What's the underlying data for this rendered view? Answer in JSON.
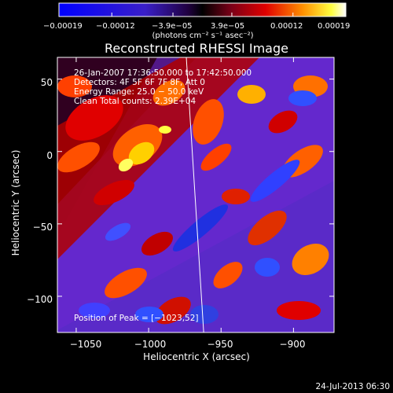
{
  "chart_data": {
    "type": "heatmap",
    "title": "Reconstructed RHESSI Image",
    "xlabel": "Heliocentric X (arcsec)",
    "ylabel": "Heliocentric Y (arcsec)",
    "xlim": [
      -1063,
      -872
    ],
    "ylim": [
      -125,
      65
    ],
    "xticks": [
      -1050,
      -1000,
      -950,
      -900
    ],
    "xtick_labels": [
      "−1050",
      "−1000",
      "−950",
      "−900"
    ],
    "yticks": [
      50,
      0,
      -50,
      -100
    ],
    "ytick_labels": [
      "50",
      "0",
      "−50",
      "−100"
    ],
    "colorbar": {
      "range": [
        -0.00019,
        0.00019
      ],
      "ticks": [
        -0.00019,
        -0.00012,
        -3.9e-05,
        3.9e-05,
        0.00012,
        0.00019
      ],
      "tick_labels": [
        "−0.00019",
        "−0.00012",
        "−3.9e−05",
        "3.9e−05",
        "0.00012",
        "0.00019"
      ],
      "units_label": "(photons cm⁻² s⁻¹ asec⁻²)"
    },
    "limb_line": [
      [
        -974,
        65
      ],
      [
        -962,
        -125
      ]
    ],
    "peak": [
      -1023,
      52
    ],
    "colors": {
      "low": "#0000ff",
      "mid": "#000000",
      "high": "#ffff00",
      "top": "#ffffff"
    }
  },
  "info": {
    "time_range": "26-Jan-2007 17:36:50.000 to 17:42:50.000",
    "detectors": "Detectors: 4F 5F 6F 7F 8F, Att 0",
    "energy": "Energy Range: 25.0 − 50.0 keV",
    "clean": "Clean     Total counts: 2.39E+04",
    "peak": "Position of Peak = [−1023,52]"
  },
  "footer": {
    "timestamp": "24-Jul-2013 06:30"
  }
}
